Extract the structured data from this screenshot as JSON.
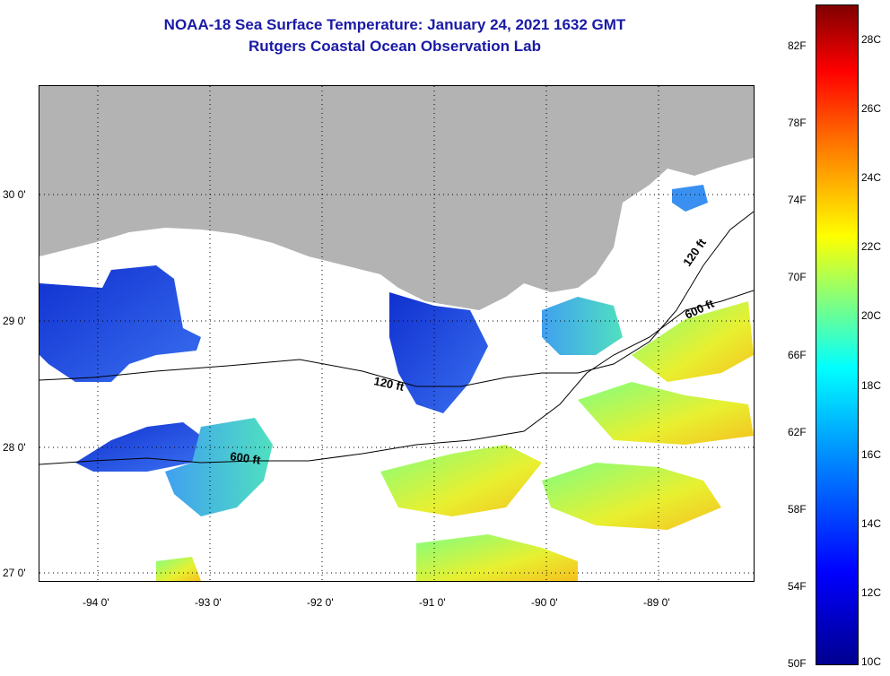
{
  "title": {
    "line1": "NOAA-18 Sea Surface Temperature:  January 24, 2021 1632 GMT",
    "line2": "Rutgers Coastal Ocean Observation Lab"
  },
  "map": {
    "lat_labels": [
      "30 0'",
      "29 0'",
      "28 0'",
      "27 0'"
    ],
    "lon_labels": [
      "-94 0'",
      "-93 0'",
      "-92 0'",
      "-91 0'",
      "-90 0'",
      "-89 0'"
    ],
    "isobath_labels": [
      "120 ft",
      "600 ft",
      "120 ft",
      "600 ft"
    ],
    "colors": {
      "land": "#b3b3b3",
      "cloud": "#ffffff",
      "contour": "#000000"
    },
    "water_patches": [
      {
        "region": "west-shelf",
        "temp_level": "cold",
        "color": "#1a3de0"
      },
      {
        "region": "atchafalaya",
        "temp_level": "cold",
        "color": "#2a55f0"
      },
      {
        "region": "mid-shelf",
        "temp_level": "cool",
        "color": "#3aa0f5"
      },
      {
        "region": "offshore-east",
        "temp_level": "warm",
        "color": "#e8e830"
      },
      {
        "region": "offshore-south",
        "temp_level": "warm",
        "color": "#f0b020"
      }
    ]
  },
  "colorbar": {
    "f_labels": [
      "82F",
      "78F",
      "74F",
      "70F",
      "66F",
      "62F",
      "58F",
      "54F",
      "50F"
    ],
    "c_labels": [
      "28C",
      "26C",
      "24C",
      "22C",
      "20C",
      "18C",
      "16C",
      "14C",
      "12C",
      "10C"
    ],
    "colors": [
      "#00008f",
      "#0000ff",
      "#0080ff",
      "#00ffff",
      "#80ff80",
      "#ffff00",
      "#ff8000",
      "#ff0000",
      "#800000"
    ]
  }
}
